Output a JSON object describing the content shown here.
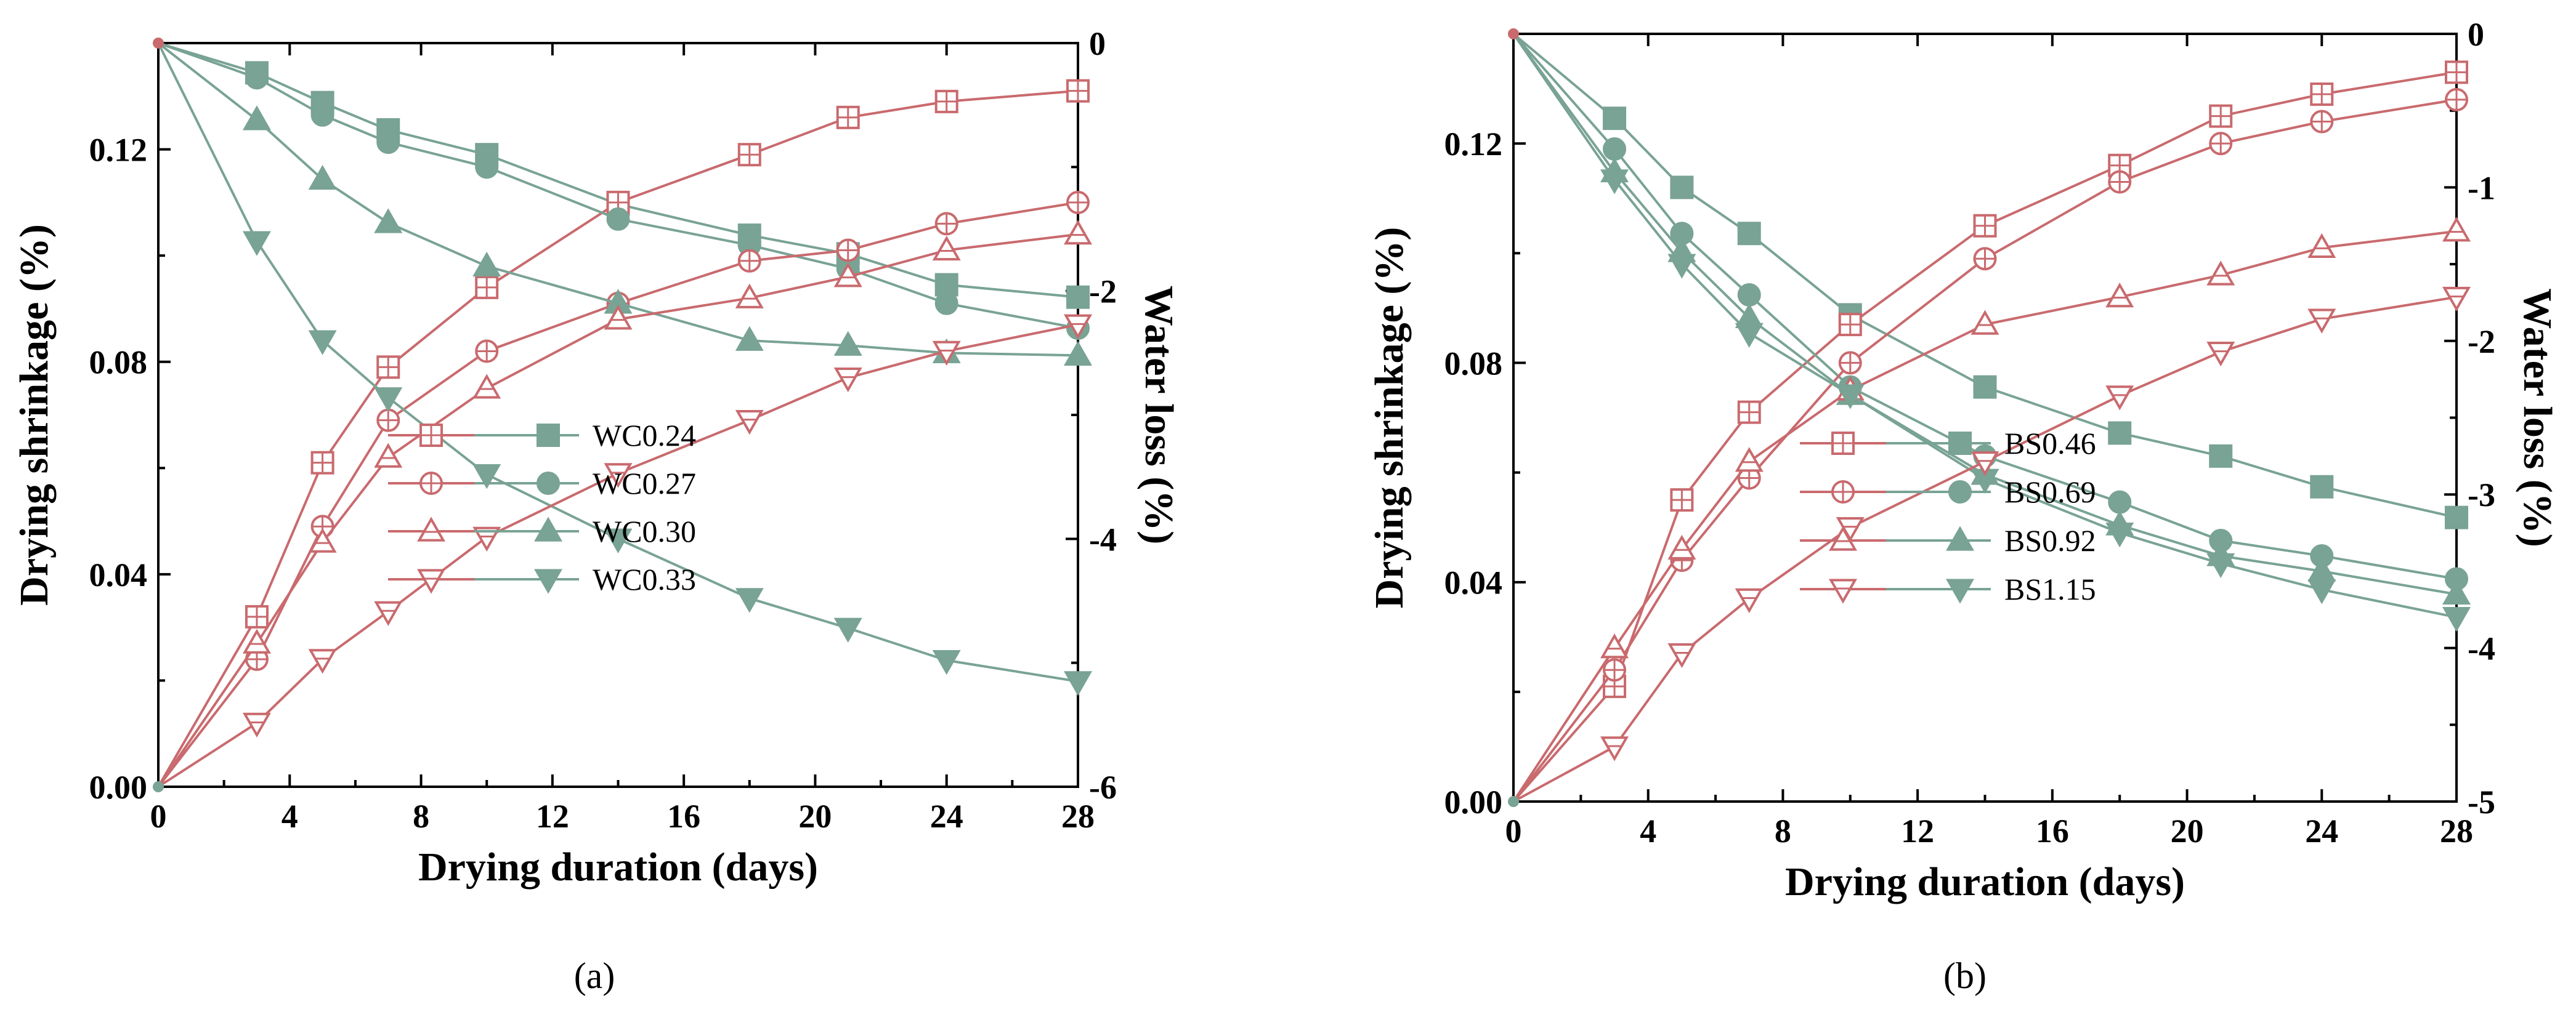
{
  "colors": {
    "shrinkage": "#c96a6e",
    "water_loss": "#79a394",
    "axis": "#000000",
    "background": "#ffffff"
  },
  "chart_data": [
    {
      "type": "line",
      "panel_label": "(a)",
      "xlabel": "Drying duration (days)",
      "ylabel_left": "Drying shrinkage (%)",
      "ylabel_right": "Water loss (%)",
      "xlim": [
        0,
        28
      ],
      "xticks": [
        0,
        4,
        8,
        12,
        16,
        20,
        24,
        28
      ],
      "ylim_left": [
        0,
        0.14
      ],
      "yticks_left": [
        0.0,
        0.04,
        0.08,
        0.12
      ],
      "ytick_labels_left": [
        "0.00",
        "0.04",
        "0.08",
        "0.12"
      ],
      "ylim_right": [
        -6,
        0
      ],
      "yticks_right": [
        -6,
        -4,
        -2,
        0
      ],
      "ytick_labels_right": [
        "-6",
        "-4",
        "-2",
        "0"
      ],
      "legend_position": "lower-center",
      "grid": false,
      "x": [
        0,
        3,
        5,
        7,
        10,
        14,
        18,
        21,
        24,
        28
      ],
      "series": [
        {
          "name": "WC0.24",
          "marker": "square",
          "shrinkage": [
            0.0,
            0.032,
            0.061,
            0.079,
            0.094,
            0.11,
            0.119,
            0.126,
            0.129,
            0.131
          ],
          "water_loss": [
            0.0,
            -0.24,
            -0.48,
            -0.7,
            -0.9,
            -1.3,
            -1.55,
            -1.7,
            -1.95,
            -2.05
          ]
        },
        {
          "name": "WC0.27",
          "marker": "circle",
          "shrinkage": [
            0.0,
            0.024,
            0.049,
            0.069,
            0.082,
            0.091,
            0.099,
            0.101,
            0.106,
            0.11
          ],
          "water_loss": [
            0.0,
            -0.28,
            -0.58,
            -0.8,
            -1.0,
            -1.42,
            -1.63,
            -1.82,
            -2.1,
            -2.3
          ]
        },
        {
          "name": "WC0.30",
          "marker": "triangle-up",
          "shrinkage": [
            0.0,
            0.027,
            0.046,
            0.062,
            0.075,
            0.088,
            0.092,
            0.096,
            0.101,
            0.104
          ],
          "water_loss": [
            0.0,
            -0.62,
            -1.1,
            -1.45,
            -1.8,
            -2.1,
            -2.4,
            -2.44,
            -2.5,
            -2.52
          ]
        },
        {
          "name": "WC0.33",
          "marker": "triangle-down",
          "shrinkage": [
            0.0,
            0.012,
            0.024,
            0.033,
            0.047,
            0.059,
            0.069,
            0.077,
            0.082,
            0.087
          ],
          "water_loss": [
            0.0,
            -1.6,
            -2.4,
            -2.86,
            -3.48,
            -4.0,
            -4.48,
            -4.72,
            -4.98,
            -5.15
          ]
        }
      ]
    },
    {
      "type": "line",
      "panel_label": "(b)",
      "xlabel": "Drying duration (days)",
      "ylabel_left": "Drying shrinkage (%)",
      "ylabel_right": "Water loss (%)",
      "xlim": [
        0,
        28
      ],
      "xticks": [
        0,
        4,
        8,
        12,
        16,
        20,
        24,
        28
      ],
      "ylim_left": [
        0,
        0.14
      ],
      "yticks_left": [
        0.0,
        0.04,
        0.08,
        0.12
      ],
      "ytick_labels_left": [
        "0.00",
        "0.04",
        "0.08",
        "0.12"
      ],
      "ylim_right": [
        -5,
        0
      ],
      "yticks_right": [
        -5,
        -4,
        -3,
        -2,
        -1,
        0
      ],
      "ytick_labels_right": [
        "-5",
        "-4",
        "-3",
        "-2",
        "-1",
        "0"
      ],
      "legend_position": "lower-center",
      "grid": false,
      "x": [
        0,
        3,
        5,
        7,
        10,
        14,
        18,
        21,
        24,
        28
      ],
      "series": [
        {
          "name": "BS0.46",
          "marker": "square",
          "shrinkage": [
            0.0,
            0.021,
            0.055,
            0.071,
            0.087,
            0.105,
            0.116,
            0.125,
            0.129,
            0.133
          ],
          "water_loss": [
            0.0,
            -0.55,
            -1.0,
            -1.3,
            -1.83,
            -2.3,
            -2.6,
            -2.75,
            -2.95,
            -3.15
          ]
        },
        {
          "name": "BS0.69",
          "marker": "circle",
          "shrinkage": [
            0.0,
            0.024,
            0.044,
            0.059,
            0.08,
            0.099,
            0.113,
            0.12,
            0.124,
            0.128
          ],
          "water_loss": [
            0.0,
            -0.75,
            -1.3,
            -1.7,
            -2.3,
            -2.75,
            -3.05,
            -3.3,
            -3.4,
            -3.55
          ]
        },
        {
          "name": "BS0.92",
          "marker": "triangle-up",
          "shrinkage": [
            0.0,
            0.028,
            0.046,
            0.062,
            0.075,
            0.087,
            0.092,
            0.096,
            0.101,
            0.104
          ],
          "water_loss": [
            0.0,
            -0.9,
            -1.42,
            -1.85,
            -2.35,
            -2.87,
            -3.2,
            -3.4,
            -3.5,
            -3.65
          ]
        },
        {
          "name": "BS1.15",
          "marker": "triangle-down",
          "shrinkage": [
            0.0,
            0.01,
            0.027,
            0.037,
            0.05,
            0.062,
            0.074,
            0.082,
            0.088,
            0.092
          ],
          "water_loss": [
            0.0,
            -0.95,
            -1.5,
            -1.95,
            -2.35,
            -2.9,
            -3.25,
            -3.45,
            -3.62,
            -3.8
          ]
        }
      ]
    }
  ]
}
